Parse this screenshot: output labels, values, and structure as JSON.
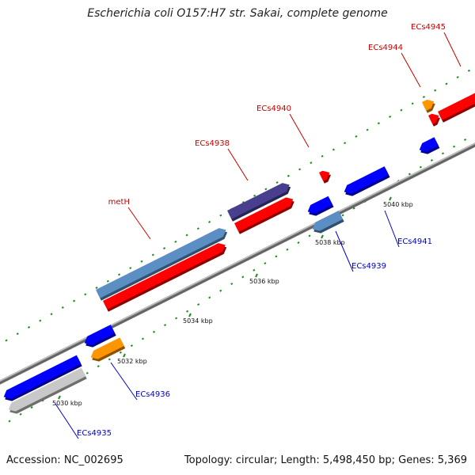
{
  "title": "Escherichia coli O157:H7 str. Sakai, complete genome",
  "footer": {
    "accession": "Accession: NC_002695",
    "summary": "Topology: circular; Length: 5,498,450 bp; Genes: 5,369"
  },
  "ticks": [
    "5030 kbp",
    "5032 kbp",
    "5034 kbp",
    "5036 kbp",
    "5038 kbp",
    "5040 kbp"
  ],
  "colors": {
    "forward_label": "#cc0000",
    "reverse_label": "#0000cc",
    "backbone": "#8a8a8a",
    "tick_mark": "#1e8a1e"
  },
  "forward_genes": [
    {
      "label": "metH",
      "color": "#5b8fc4"
    },
    {
      "label": "ECs4938",
      "color": "#48408f"
    },
    {
      "label": "ECs4940",
      "color": "#ff0000"
    },
    {
      "label": "ECs4944",
      "color": "#ff9500"
    },
    {
      "label": "ECs4945",
      "color": "#ff0000"
    }
  ],
  "reverse_genes": [
    {
      "label": "ECs4935",
      "color": "#c8c8c8"
    },
    {
      "label": "ECs4936",
      "color": "#ff9500"
    },
    {
      "label": "ECs4939",
      "color": "#5b8fc4"
    },
    {
      "label": "ECs4941",
      "color": "#0000ff"
    }
  ]
}
